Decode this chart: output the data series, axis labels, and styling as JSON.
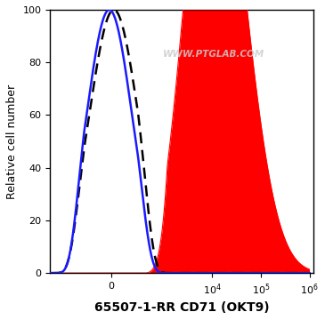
{
  "title": "65507-1-RR CD71 (OKT9)",
  "ylabel": "Relative cell number",
  "xlabel": "65507-1-RR CD71 (OKT9)",
  "watermark": "WWW.PTGLAB.COM",
  "ylim": [
    0,
    100
  ],
  "yticks": [
    0,
    20,
    40,
    60,
    80,
    100
  ],
  "background_color": "#ffffff",
  "plot_bg_color": "#ffffff",
  "specific_color": "#ff0000",
  "blue_line_color": "#1a1aff",
  "dashed_line_color": "#000000",
  "linthresh": 300,
  "linscale": 0.5,
  "xmin": -1500,
  "xmax": 1200000
}
